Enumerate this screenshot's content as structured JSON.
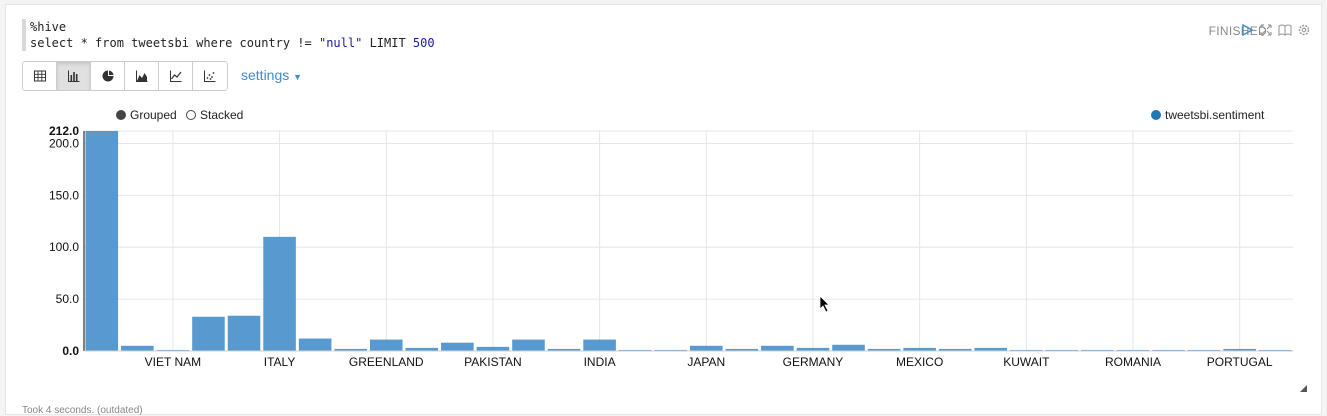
{
  "paragraph": {
    "code_line1": "%hive",
    "code_line2_prefix": "select * from tweetsbi where country != ",
    "code_line2_string": "\"null\"",
    "code_line2_limit": " LIMIT ",
    "code_line2_number": "500",
    "status": "FINISHED",
    "footer": "Took 4 seconds. (outdated)"
  },
  "toolbar": {
    "buttons": [
      "table-icon",
      "bar-chart-icon",
      "pie-chart-icon",
      "area-chart-icon",
      "line-chart-icon",
      "scatter-chart-icon"
    ],
    "active": "bar-chart-icon",
    "settings_label": "settings"
  },
  "legend": {
    "grouped_label": "Grouped",
    "stacked_label": "Stacked",
    "series_label": "tweetsbi.sentiment"
  },
  "colors": {
    "bar": "#5b9bd5",
    "bar_fill": "#4f94cd",
    "link": "#428bca"
  },
  "chart_data": {
    "type": "bar",
    "ylim": [
      0,
      212
    ],
    "yticks": [
      "0.0",
      "50.0",
      "100.0",
      "150.0",
      "200.0",
      "212.0"
    ],
    "xticklabels": [
      "VIET NAM",
      "ITALY",
      "GREENLAND",
      "PAKISTAN",
      "INDIA",
      "JAPAN",
      "GERMANY",
      "MEXICO",
      "KUWAIT",
      "ROMANIA",
      "PORTUGAL"
    ],
    "series": [
      {
        "name": "tweetsbi.sentiment",
        "values": [
          212,
          5,
          1,
          33,
          34,
          110,
          12,
          2,
          11,
          3,
          8,
          4,
          11,
          2,
          11,
          1,
          1,
          5,
          2,
          5,
          3,
          6,
          2,
          3,
          2,
          3,
          1,
          1,
          1,
          1,
          1,
          1,
          2,
          1
        ]
      }
    ],
    "grid": true,
    "legend_position": "top-right"
  }
}
